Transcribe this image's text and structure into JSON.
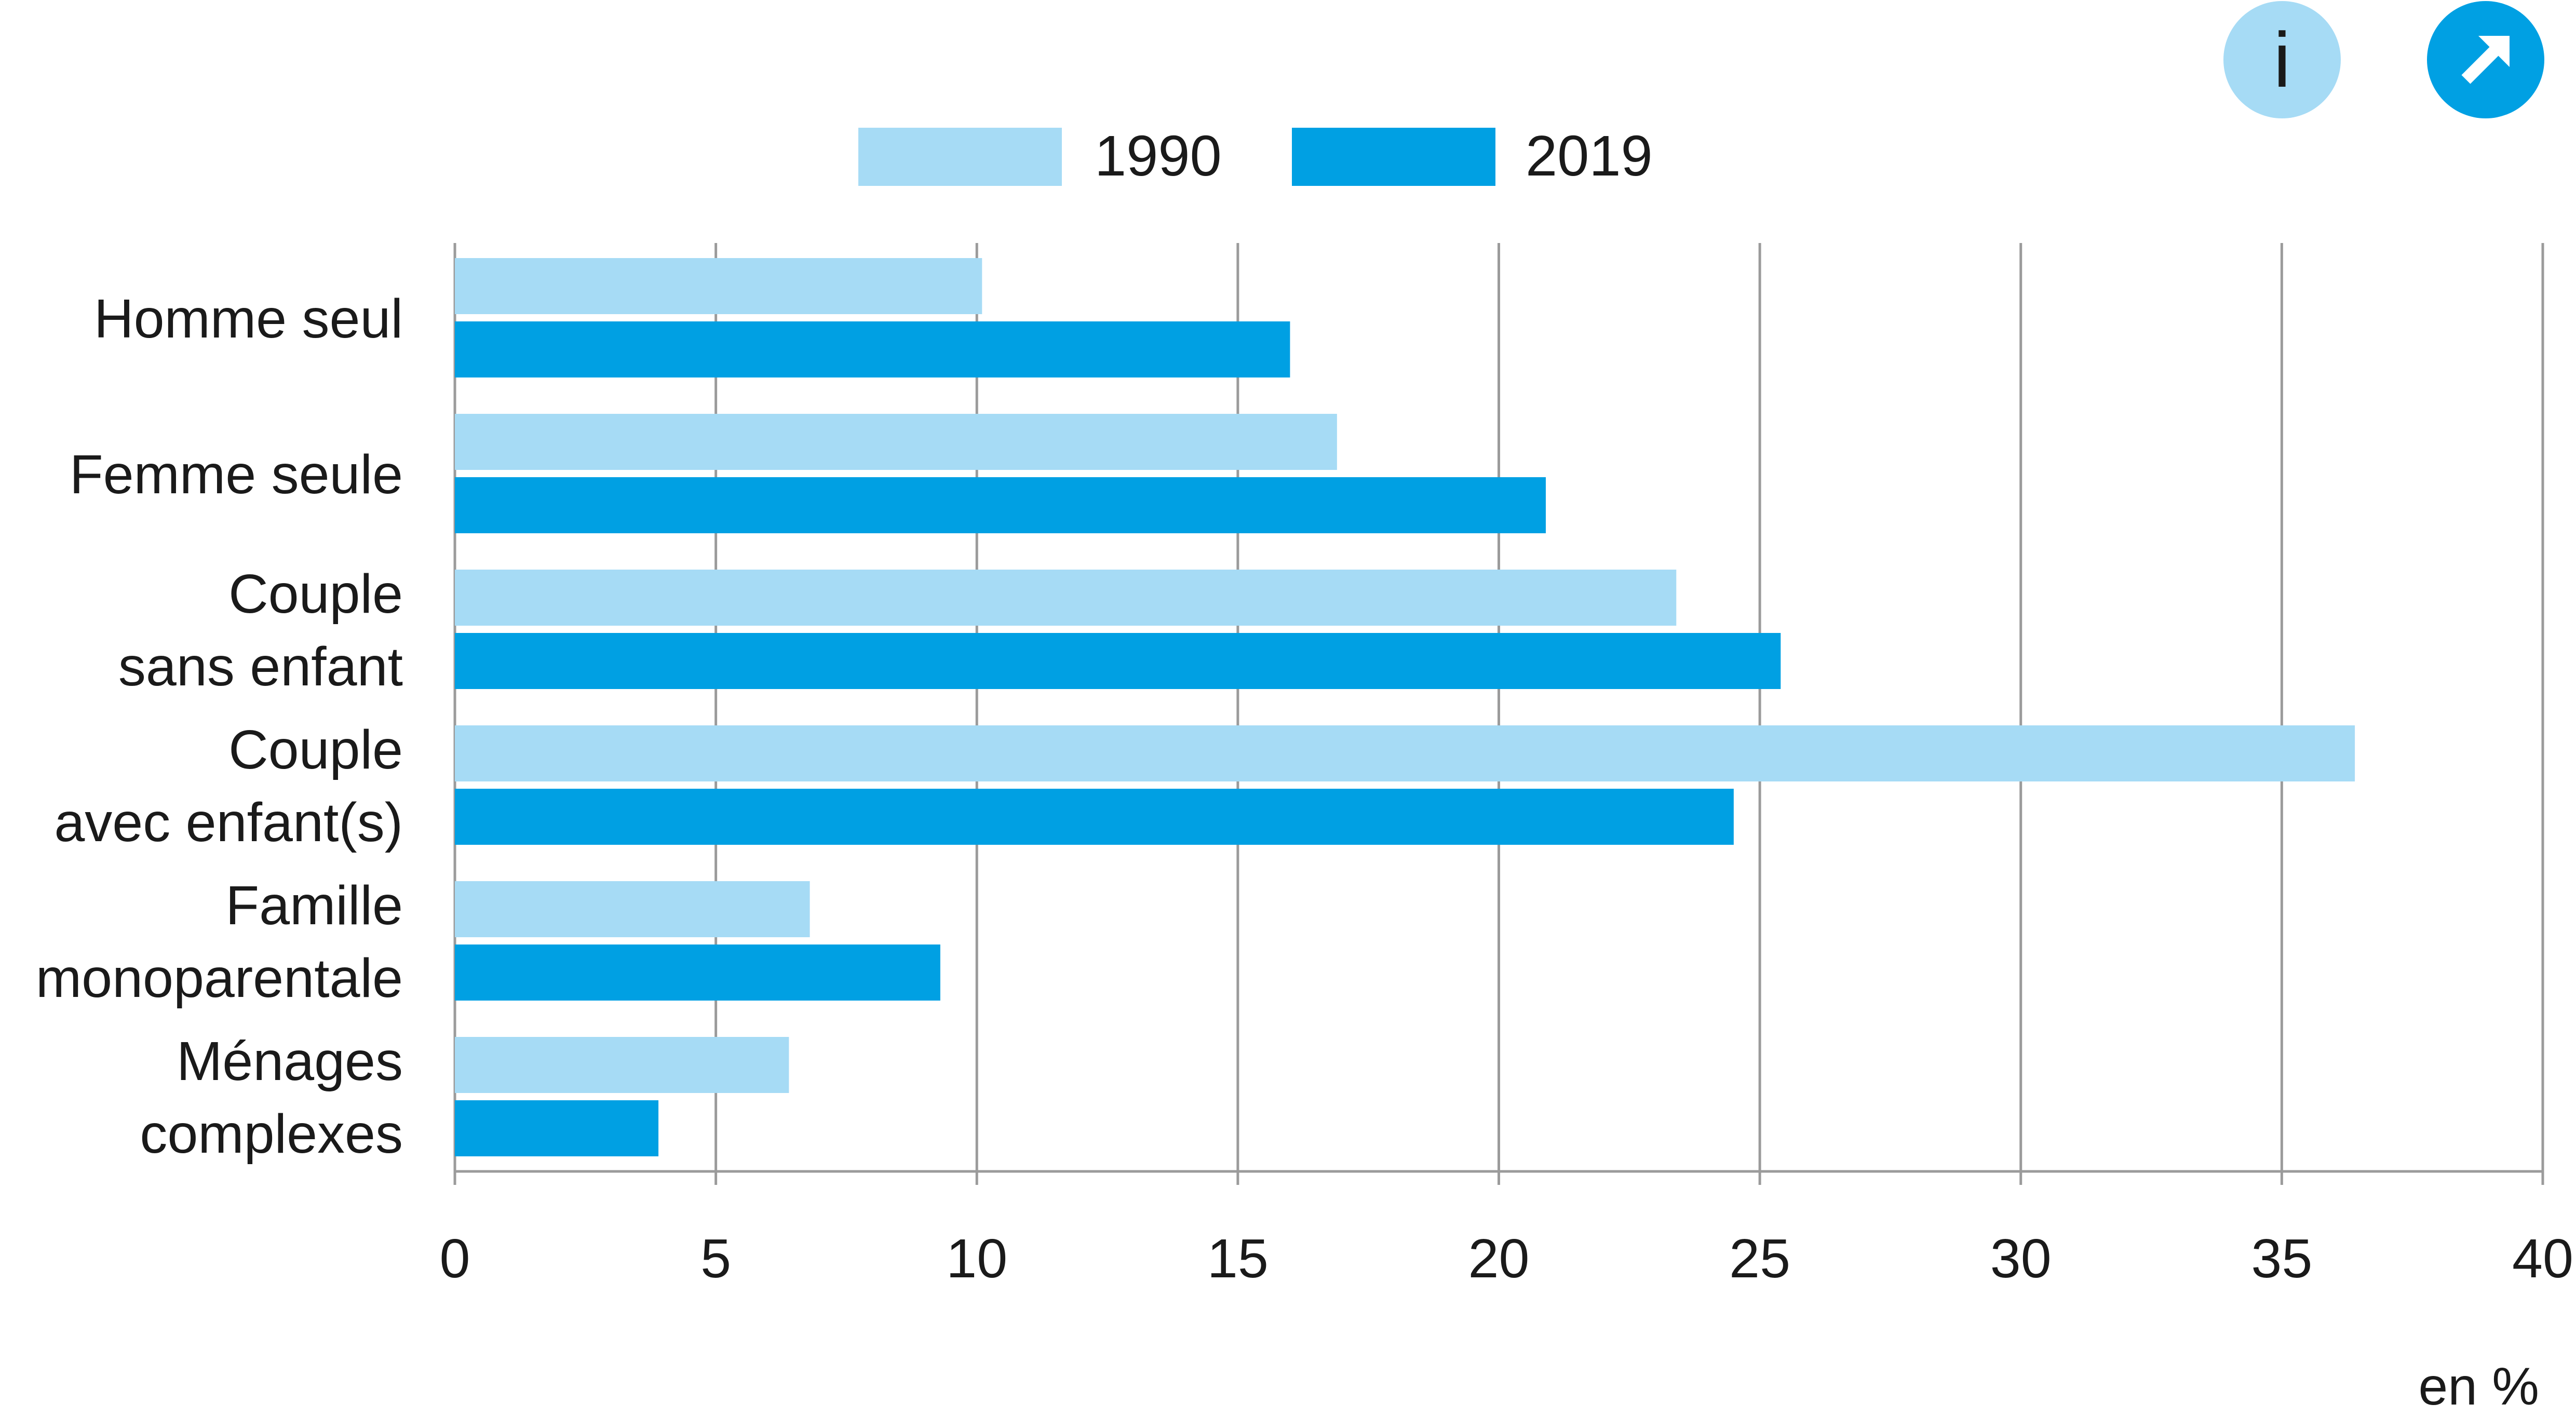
{
  "chart_data": {
    "type": "bar",
    "orientation": "horizontal",
    "categories": [
      [
        "Homme seul"
      ],
      [
        "Femme seule"
      ],
      [
        "Couple",
        "sans enfant"
      ],
      [
        "Couple",
        "avec enfant(s)"
      ],
      [
        "Famille",
        "monoparentale"
      ],
      [
        "Ménages",
        "complexes"
      ]
    ],
    "series": [
      {
        "name": "1990",
        "color": "#a6dbf5",
        "values": [
          10.1,
          16.9,
          23.4,
          36.4,
          6.8,
          6.4
        ]
      },
      {
        "name": "2019",
        "color": "#00a0e3",
        "values": [
          16.0,
          20.9,
          25.4,
          24.5,
          9.3,
          3.9
        ]
      }
    ],
    "xlim": [
      0,
      40
    ],
    "xticks": [
      "0",
      "5",
      "10",
      "15",
      "20",
      "25",
      "30",
      "35",
      "40"
    ],
    "xlabel": "en %",
    "grid": true,
    "legend": "top-center"
  },
  "buttons": {
    "info_label": "i",
    "info_icon": "info-icon",
    "link_icon": "external-link-arrow-icon"
  },
  "colors": {
    "light": "#a6dbf5",
    "dark": "#00a0e3",
    "grid": "#9b9b9b",
    "text": "#1a1a1a"
  }
}
